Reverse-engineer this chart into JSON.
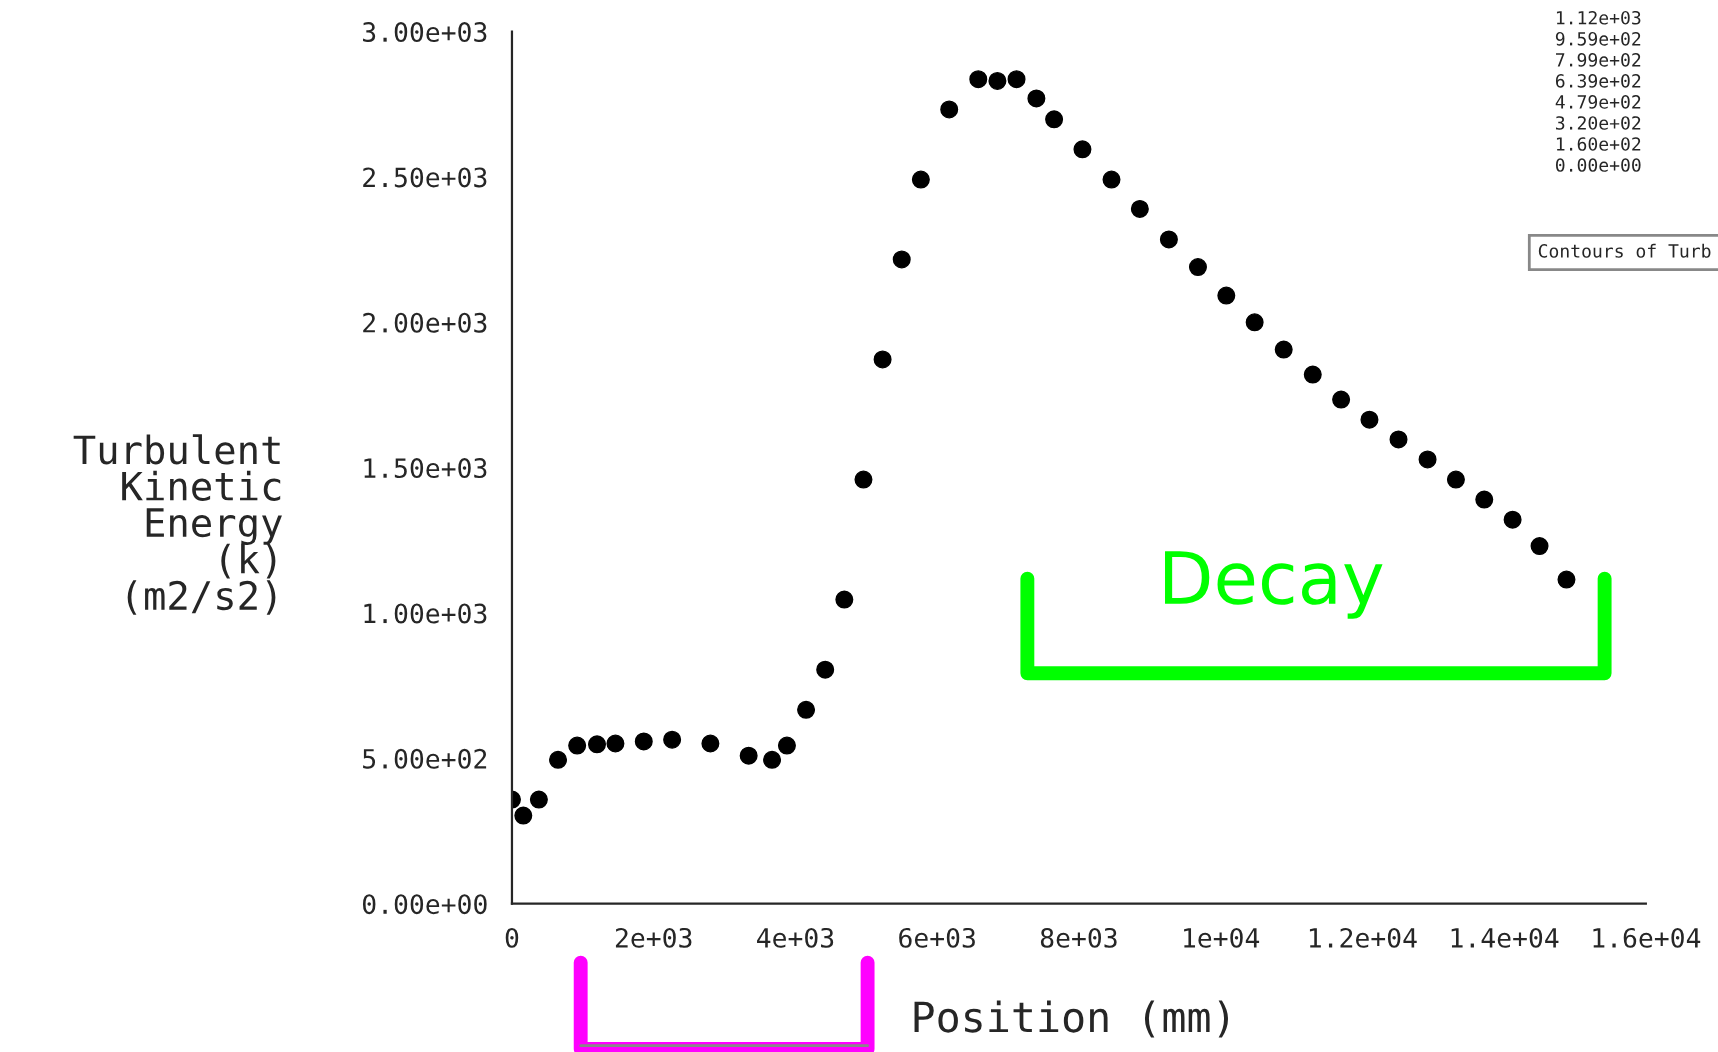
{
  "chart_data": {
    "type": "scatter",
    "xlabel": "Position (mm)",
    "ylabel": "Turbulent\nKinetic\nEnergy\n(k)\n(m2/s2)",
    "x": [
      0,
      160,
      380,
      650,
      920,
      1200,
      1460,
      1860,
      2260,
      2800,
      3340,
      3670,
      3880,
      4150,
      4420,
      4690,
      4960,
      5230,
      5500,
      5770,
      6170,
      6580,
      6850,
      7120,
      7400,
      7650,
      8050,
      8460,
      8860,
      9270,
      9680,
      10080,
      10480,
      10890,
      11300,
      11700,
      12100,
      12510,
      12920,
      13320,
      13720,
      14120,
      14500,
      14880
    ],
    "series": [
      {
        "color": "#000000",
        "values": [
          358,
          303,
          358,
          495,
          544,
          548,
          551,
          558,
          564,
          551,
          509,
          495,
          544,
          667,
          805,
          1046,
          1459,
          1872,
          2216,
          2491,
          2732,
          2836,
          2830,
          2836,
          2770,
          2698,
          2595,
          2491,
          2390,
          2285,
          2190,
          2092,
          2000,
          1906,
          1820,
          1734,
          1665,
          1597,
          1528,
          1459,
          1390,
          1321,
          1230,
          1115
        ]
      }
    ],
    "marker": "circle",
    "xlim": [
      0,
      16000
    ],
    "ylim": [
      0,
      3000
    ],
    "xticks": [
      {
        "value": 0,
        "label": "0"
      },
      {
        "value": 2000,
        "label": "2e+03"
      },
      {
        "value": 4000,
        "label": "4e+03"
      },
      {
        "value": 6000,
        "label": "6e+03"
      },
      {
        "value": 8000,
        "label": "8e+03"
      },
      {
        "value": 10000,
        "label": "1e+04"
      },
      {
        "value": 12000,
        "label": "1.2e+04"
      },
      {
        "value": 14000,
        "label": "1.4e+04"
      },
      {
        "value": 16000,
        "label": "1.6e+04"
      }
    ],
    "yticks": [
      {
        "value": 0,
        "label": "0.00e+00"
      },
      {
        "value": 500,
        "label": "5.00e+02"
      },
      {
        "value": 1000,
        "label": "1.00e+03"
      },
      {
        "value": 1500,
        "label": "1.50e+03"
      },
      {
        "value": 2000,
        "label": "2.00e+03"
      },
      {
        "value": 2500,
        "label": "2.50e+03"
      },
      {
        "value": 3000,
        "label": "3.00e+03"
      }
    ],
    "annotations": [
      "Decay",
      "1.12e+03",
      "9.59e+02",
      "7.99e+02",
      "6.39e+02",
      "4.79e+02",
      "3.20e+02",
      "1.60e+02",
      "0.00e+00",
      "Contours of Turb"
    ],
    "grid": false,
    "legend": false
  }
}
